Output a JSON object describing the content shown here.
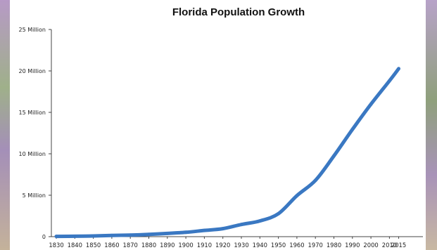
{
  "chart_data": {
    "type": "line",
    "title": "Florida Population Growth",
    "xlabel": "",
    "ylabel": "",
    "ylim": [
      0,
      25000000
    ],
    "grid": false,
    "legend": "none",
    "line_color": "#3a78c2",
    "y_ticks": [
      {
        "value": 0,
        "label": "0"
      },
      {
        "value": 5000000,
        "label": "5 Million"
      },
      {
        "value": 10000000,
        "label": "10 Million"
      },
      {
        "value": 15000000,
        "label": "15 Million"
      },
      {
        "value": 20000000,
        "label": "20 Million"
      },
      {
        "value": 25000000,
        "label": "25 Million"
      }
    ],
    "x_ticks": [
      "1830",
      "1840",
      "1850",
      "1860",
      "1870",
      "1880",
      "1890",
      "1900",
      "1910",
      "1920",
      "1930",
      "1940",
      "1950",
      "1960",
      "1970",
      "1980",
      "1990",
      "2000",
      "2010",
      "2015"
    ],
    "series": [
      {
        "values": [
          {
            "x": "1830",
            "y": 34730
          },
          {
            "x": "1840",
            "y": 54477
          },
          {
            "x": "1850",
            "y": 87445
          },
          {
            "x": "1860",
            "y": 140424
          },
          {
            "x": "1870",
            "y": 187748
          },
          {
            "x": "1880",
            "y": 269493
          },
          {
            "x": "1890",
            "y": 391422
          },
          {
            "x": "1900",
            "y": 528542
          },
          {
            "x": "1910",
            "y": 752619
          },
          {
            "x": "1920",
            "y": 968470
          },
          {
            "x": "1930",
            "y": 1468211
          },
          {
            "x": "1940",
            "y": 1897414
          },
          {
            "x": "1950",
            "y": 2771305
          },
          {
            "x": "1960",
            "y": 4951560
          },
          {
            "x": "1970",
            "y": 6789443
          },
          {
            "x": "1980",
            "y": 9746324
          },
          {
            "x": "1990",
            "y": 12937926
          },
          {
            "x": "2000",
            "y": 15982378
          },
          {
            "x": "2010",
            "y": 18801310
          },
          {
            "x": "2015",
            "y": 20271272
          }
        ]
      }
    ]
  }
}
